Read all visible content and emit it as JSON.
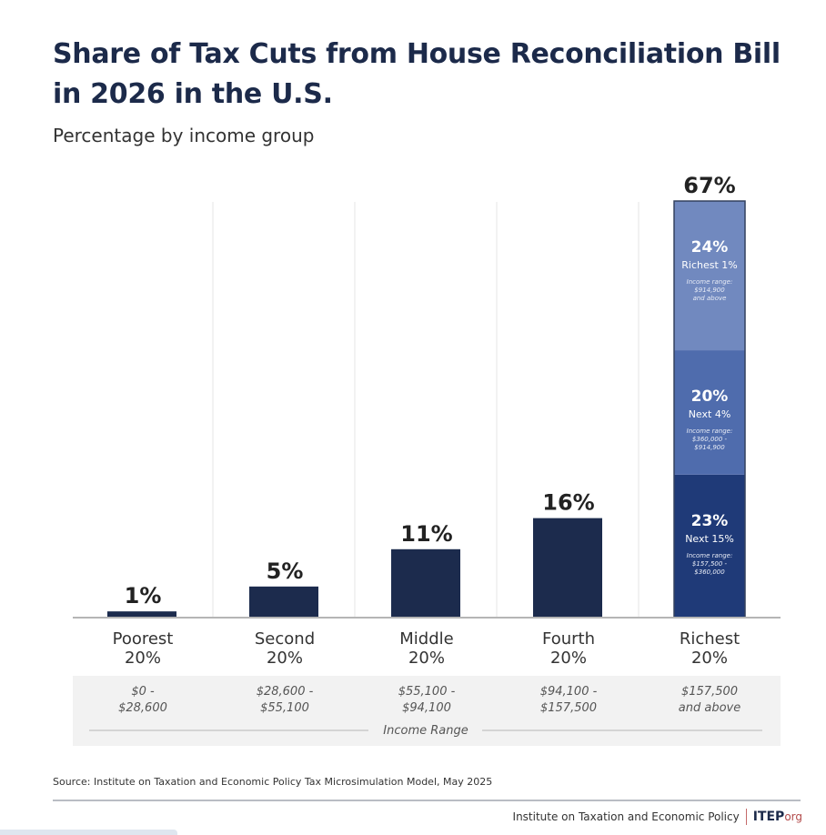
{
  "header": {
    "title": "Share of Tax Cuts from House Reconciliation Bill in 2026 in the U.S.",
    "subtitle": "Percentage by income group"
  },
  "colors": {
    "bar": "#1c2b4d",
    "segment_top": "#7189bf",
    "segment_mid": "#4f6cad",
    "segment_bottom": "#1f3a78",
    "title": "#1c2a4a",
    "panel": "#f2f2f2",
    "brand_accent": "#b24a4a"
  },
  "chart_data": {
    "type": "bar",
    "title": "Share of Tax Cuts from House Reconciliation Bill in 2026 in the U.S.",
    "subtitle": "Percentage by income group",
    "xlabel": "Income Range",
    "ylabel": "",
    "ylim": [
      0,
      67
    ],
    "grid": "vertical separators",
    "categories": [
      "Poorest 20%",
      "Second 20%",
      "Middle 20%",
      "Fourth 20%",
      "Richest 20%"
    ],
    "category_lines": [
      [
        "Poorest",
        "20%"
      ],
      [
        "Second",
        "20%"
      ],
      [
        "Middle",
        "20%"
      ],
      [
        "Fourth",
        "20%"
      ],
      [
        "Richest",
        "20%"
      ]
    ],
    "values": [
      1,
      5,
      11,
      16,
      67
    ],
    "value_labels": [
      "1%",
      "5%",
      "11%",
      "16%",
      "67%"
    ],
    "income_ranges": [
      [
        "$0 -",
        "$28,600"
      ],
      [
        "$28,600 -",
        "$55,100"
      ],
      [
        "$55,100 -",
        "$94,100"
      ],
      [
        "$94,100 -",
        "$157,500"
      ],
      [
        "$157,500",
        "and above"
      ]
    ],
    "stacked_breakdown": {
      "category": "Richest 20%",
      "segments": [
        {
          "name": "Next 15%",
          "value": 23,
          "label": "23%",
          "range_title": "Income range:",
          "range_lines": [
            "$157,500 -",
            "$360,000"
          ],
          "color_key": "segment_bottom"
        },
        {
          "name": "Next 4%",
          "value": 20,
          "label": "20%",
          "range_title": "Income range:",
          "range_lines": [
            "$360,000 -",
            "$914,900"
          ],
          "color_key": "segment_mid"
        },
        {
          "name": "Richest 1%",
          "value": 24,
          "label": "24%",
          "range_title": "Income range:",
          "range_lines": [
            "$914,900",
            "and above"
          ],
          "color_key": "segment_top"
        }
      ]
    }
  },
  "footer": {
    "source": "Source: Institute on Taxation and Economic Policy Tax Microsimulation Model, May 2025",
    "org_name": "Institute on Taxation and Economic Policy",
    "brand": "ITEP",
    "brand_suffix": "org"
  }
}
